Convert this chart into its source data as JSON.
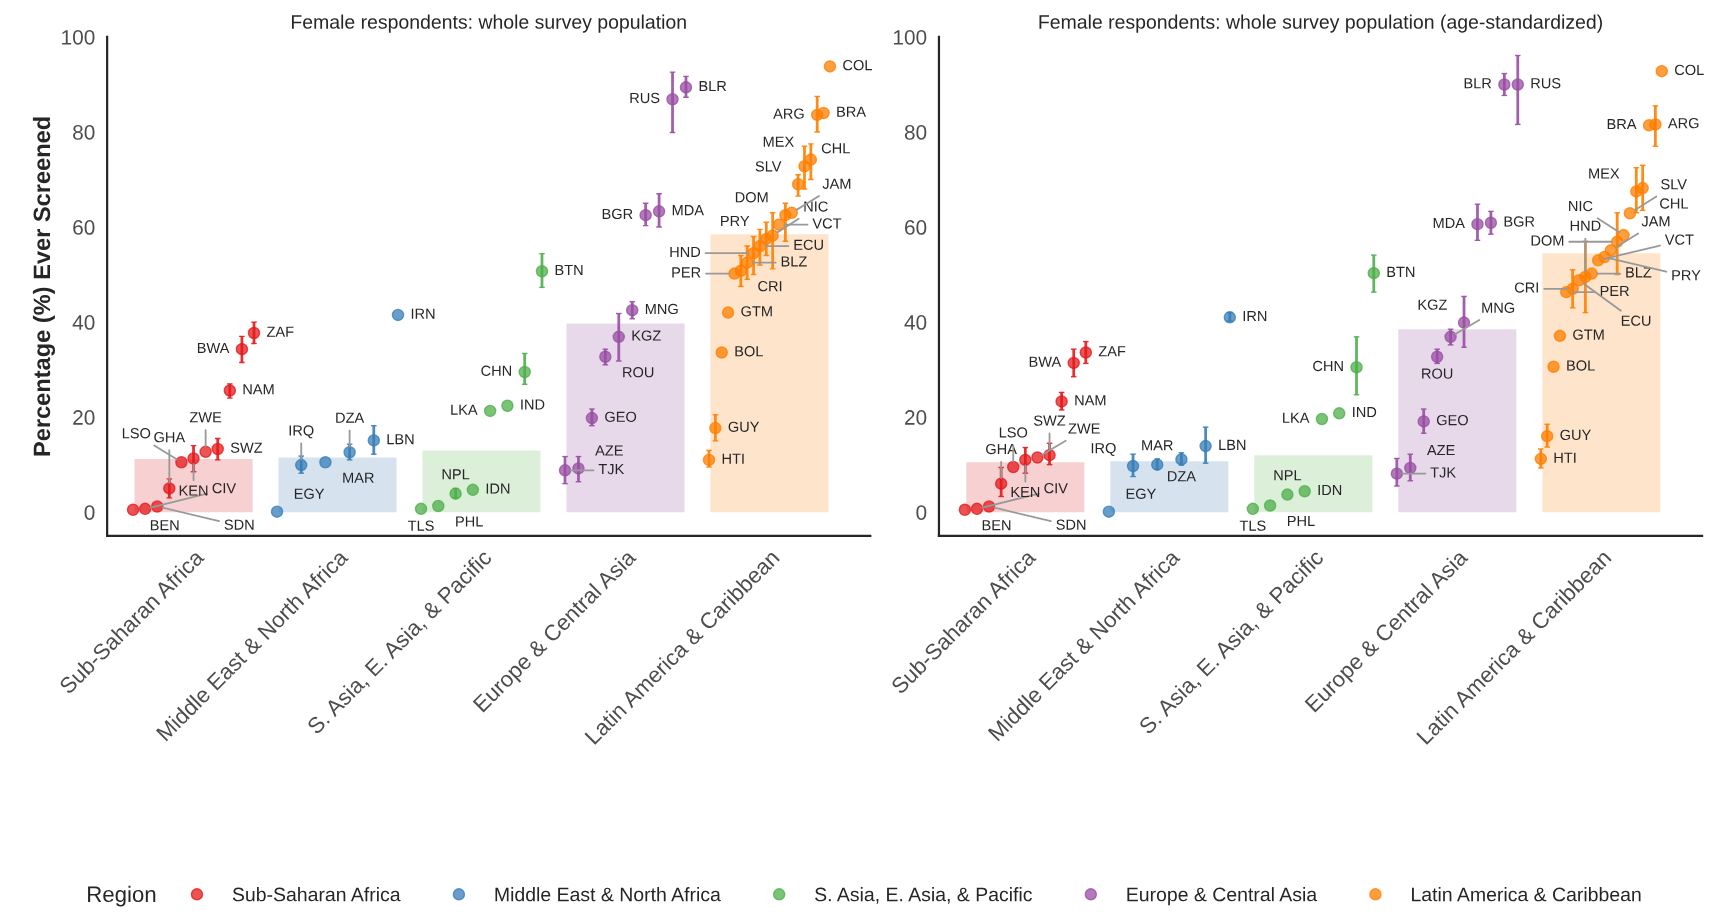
{
  "chart_data": [
    {
      "type": "bar",
      "title": "Female respondents: whole survey population",
      "ylabel": "Percentage (%) Ever Screened",
      "categories": [
        "Sub-Saharan Africa",
        "Middle East & North Africa",
        "S. Asia, E. Asia, & Pacific",
        "Europe & Central Asia",
        "Latin America & Caribbean"
      ],
      "ylim": [
        -5,
        100
      ],
      "yticks": [
        0,
        20,
        40,
        60,
        80,
        100
      ],
      "legend": "bottom",
      "legend_title": "Region",
      "series": [
        {
          "colors": [
            "#f7d0d1",
            "#d6e3ef",
            "#dcefd9",
            "#e7d9ea",
            "#ffe4cc"
          ],
          "values": [
            11.2,
            11.5,
            13,
            39.7,
            58.5
          ]
        },
        {
          "type": "scatter",
          "name": "Sub-Saharan Africa",
          "color": "#e41a1c",
          "x": [
            "Sub-Saharan Africa",
            "Sub-Saharan Africa",
            "Sub-Saharan Africa",
            "Sub-Saharan Africa",
            "Sub-Saharan Africa",
            "Sub-Saharan Africa",
            "Sub-Saharan Africa",
            "Sub-Saharan Africa",
            "Sub-Saharan Africa",
            "Sub-Saharan Africa",
            "Sub-Saharan Africa"
          ],
          "values": [
            0.5,
            0.7,
            1.2,
            5,
            10.5,
            11.3,
            12.7,
            13.3,
            25.6,
            34.3,
            37.7
          ],
          "errors": [
            null,
            null,
            null,
            [
              3,
              7
            ],
            null,
            [
              8.5,
              14
            ],
            null,
            [
              11,
              15.5
            ],
            [
              24,
              27
            ],
            [
              31.5,
              37
            ],
            [
              35.5,
              40
            ]
          ],
          "value_labels": [
            "BEN",
            "CIV",
            "SDN",
            "GHA",
            "LSO",
            "KEN",
            "ZWE",
            "SWZ",
            "NAM",
            "BWA",
            "ZAF"
          ]
        },
        {
          "type": "scatter",
          "name": "Middle East & North Africa",
          "color": "#377eb8",
          "x": [
            "Middle East & North Africa",
            "Middle East & North Africa",
            "Middle East & North Africa",
            "Middle East & North Africa",
            "Middle East & North Africa",
            "Middle East & North Africa"
          ],
          "values": [
            0.1,
            9.9,
            10.5,
            12.6,
            15.1,
            41.5
          ],
          "errors": [
            null,
            [
              8.2,
              11.8
            ],
            null,
            [
              11,
              14.3
            ],
            [
              12.2,
              18.2
            ],
            null
          ],
          "value_labels": [
            "EGY",
            "IRQ",
            "MAR",
            "DZA",
            "LBN",
            "IRN"
          ]
        },
        {
          "type": "scatter",
          "name": "S. Asia, E. Asia, & Pacific",
          "color": "#4daf4a",
          "x": [
            "S. Asia, E. Asia, & Pacific",
            "S. Asia, E. Asia, & Pacific",
            "S. Asia, E. Asia, & Pacific",
            "S. Asia, E. Asia, & Pacific",
            "S. Asia, E. Asia, & Pacific",
            "S. Asia, E. Asia, & Pacific",
            "S. Asia, E. Asia, & Pacific",
            "S. Asia, E. Asia, & Pacific"
          ],
          "values": [
            0.7,
            1.3,
            3.9,
            4.7,
            21.3,
            22.4,
            29.5,
            50.7
          ],
          "errors": [
            null,
            null,
            [
              3,
              5
            ],
            null,
            null,
            null,
            [
              26.9,
              33.4
            ],
            [
              47.3,
              54.4
            ]
          ],
          "value_labels": [
            "TLS",
            "PHL",
            "NPL",
            "IDN",
            "LKA",
            "IND",
            "CHN",
            "BTN"
          ]
        },
        {
          "type": "scatter",
          "name": "Europe & Central Asia",
          "color": "#984ea3",
          "x": [
            "Europe & Central Asia",
            "Europe & Central Asia",
            "Europe & Central Asia",
            "Europe & Central Asia",
            "Europe & Central Asia",
            "Europe & Central Asia",
            "Europe & Central Asia",
            "Europe & Central Asia",
            "Europe & Central Asia",
            "Europe & Central Asia"
          ],
          "values": [
            8.8,
            9.2,
            19.8,
            32.7,
            36.9,
            42.5,
            62.5,
            63.3,
            86.9,
            89.4
          ],
          "errors": [
            [
              6,
              11.7
            ],
            [
              6.4,
              11.7
            ],
            [
              18.2,
              21.7
            ],
            [
              31,
              34.3
            ],
            [
              31.8,
              41.8
            ],
            [
              40.7,
              44.3
            ],
            [
              60.3,
              65
            ],
            [
              60,
              67
            ],
            [
              79.9,
              92.6
            ],
            [
              87.3,
              91.7
            ]
          ],
          "value_labels": [
            "TJK",
            "AZE",
            "GEO",
            "ROU",
            "KGZ",
            "MNG",
            "BGR",
            "MDA",
            "RUS",
            "BLR"
          ]
        },
        {
          "type": "scatter",
          "name": "Latin America & Caribbean",
          "color": "#ff7f00",
          "x": [
            "Latin America & Caribbean",
            "Latin America & Caribbean",
            "Latin America & Caribbean",
            "Latin America & Caribbean",
            "Latin America & Caribbean",
            "Latin America & Caribbean",
            "Latin America & Caribbean",
            "Latin America & Caribbean",
            "Latin America & Caribbean",
            "Latin America & Caribbean",
            "Latin America & Caribbean",
            "Latin America & Caribbean",
            "Latin America & Caribbean",
            "Latin America & Caribbean",
            "Latin America & Caribbean",
            "Latin America & Caribbean",
            "Latin America & Caribbean",
            "Latin America & Caribbean",
            "Latin America & Caribbean",
            "Latin America & Caribbean"
          ],
          "values": [
            11,
            17.7,
            33.6,
            42,
            50.2,
            50.8,
            52.5,
            54.5,
            56,
            57.5,
            58.2,
            60.5,
            62.5,
            63,
            69,
            72.8,
            74.2,
            83.6,
            84,
            93.8
          ],
          "errors": [
            [
              9.5,
              13
            ],
            [
              15,
              20.5
            ],
            null,
            null,
            null,
            [
              47.5,
              54
            ],
            [
              49,
              56
            ],
            [
              50,
              58
            ],
            [
              52,
              59.5
            ],
            [
              54,
              61
            ],
            [
              51.2,
              63
            ],
            null,
            [
              57,
              65
            ],
            null,
            [
              66.5,
              71
            ],
            [
              68,
              77
            ],
            [
              70,
              77.5
            ],
            [
              80,
              87.5
            ],
            null,
            null
          ],
          "value_labels": [
            "HTI",
            "GUY",
            "BOL",
            "GTM",
            "PER",
            "CRI",
            "BLZ",
            "HND",
            "ECU",
            "PRY",
            "NIC",
            "VCT",
            "DOM",
            "JAM",
            "SLV",
            "CHL",
            "MEX",
            "ARG",
            "BRA",
            "COL"
          ]
        }
      ]
    },
    {
      "type": "bar",
      "title": "Female respondents: whole survey population (age-standardized)",
      "categories": [
        "Sub-Saharan Africa",
        "Middle East & North Africa",
        "S. Asia, E. Asia, & Pacific",
        "Europe & Central Asia",
        "Latin America & Caribbean"
      ],
      "ylim": [
        -5,
        100
      ],
      "yticks": [
        0,
        20,
        40,
        60,
        80,
        100
      ],
      "series": [
        {
          "colors": [
            "#f7d0d1",
            "#d6e3ef",
            "#dcefd9",
            "#e7d9ea",
            "#ffe4cc"
          ],
          "values": [
            10.5,
            10.7,
            12,
            38.5,
            54.5
          ]
        },
        {
          "type": "scatter",
          "name": "Sub-Saharan Africa",
          "color": "#e41a1c",
          "x": [
            "Sub-Saharan Africa",
            "Sub-Saharan Africa",
            "Sub-Saharan Africa",
            "Sub-Saharan Africa",
            "Sub-Saharan Africa",
            "Sub-Saharan Africa",
            "Sub-Saharan Africa",
            "Sub-Saharan Africa",
            "Sub-Saharan Africa",
            "Sub-Saharan Africa",
            "Sub-Saharan Africa"
          ],
          "values": [
            0.5,
            0.7,
            1.2,
            6,
            9.5,
            11,
            11.5,
            12,
            23.3,
            31.4,
            33.6
          ],
          "errors": [
            null,
            null,
            null,
            [
              3.3,
              9.4
            ],
            null,
            [
              8.2,
              13.6
            ],
            null,
            [
              10,
              14.5
            ],
            [
              21.5,
              25.2
            ],
            [
              28.5,
              34.3
            ],
            [
              31.3,
              35.9
            ]
          ],
          "value_labels": [
            "BEN",
            "CIV",
            "SDN",
            "GHA",
            "LSO",
            "KEN",
            "ZWE",
            "SWZ",
            "NAM",
            "BWA",
            "ZAF"
          ]
        },
        {
          "type": "scatter",
          "name": "Middle East & North Africa",
          "color": "#377eb8",
          "x": [
            "Middle East & North Africa",
            "Middle East & North Africa",
            "Middle East & North Africa",
            "Middle East & North Africa",
            "Middle East & North Africa",
            "Middle East & North Africa"
          ],
          "values": [
            0.1,
            9.7,
            10,
            11.1,
            13.9,
            41
          ],
          "errors": [
            null,
            [
              7.5,
              12.2
            ],
            [
              9,
              11.2
            ],
            [
              9.9,
              12.5
            ],
            [
              10.3,
              17.9
            ],
            [
              40.2,
              42
            ]
          ],
          "value_labels": [
            "EGY",
            "IRQ",
            "MAR",
            "DZA",
            "LBN",
            "IRN"
          ]
        },
        {
          "type": "scatter",
          "name": "S. Asia, E. Asia, & Pacific",
          "color": "#4daf4a",
          "x": [
            "S. Asia, E. Asia, & Pacific",
            "S. Asia, E. Asia, & Pacific",
            "S. Asia, E. Asia, & Pacific",
            "S. Asia, E. Asia, & Pacific",
            "S. Asia, E. Asia, & Pacific",
            "S. Asia, E. Asia, & Pacific",
            "S. Asia, E. Asia, & Pacific",
            "S. Asia, E. Asia, & Pacific"
          ],
          "values": [
            0.7,
            1.4,
            3.7,
            4.4,
            19.6,
            20.8,
            30.5,
            50.3
          ],
          "errors": [
            null,
            null,
            null,
            null,
            null,
            null,
            [
              24.7,
              36.9
            ],
            [
              46.3,
              54.1
            ]
          ],
          "value_labels": [
            "TLS",
            "PHL",
            "NPL",
            "IDN",
            "LKA",
            "IND",
            "CHN",
            "BTN"
          ]
        },
        {
          "type": "scatter",
          "name": "Europe & Central Asia",
          "color": "#984ea3",
          "x": [
            "Europe & Central Asia",
            "Europe & Central Asia",
            "Europe & Central Asia",
            "Europe & Central Asia",
            "Europe & Central Asia",
            "Europe & Central Asia",
            "Europe & Central Asia",
            "Europe & Central Asia",
            "Europe & Central Asia",
            "Europe & Central Asia"
          ],
          "values": [
            8.1,
            9.3,
            19.1,
            32.7,
            36.9,
            39.9,
            60.6,
            60.9,
            90,
            90
          ],
          "errors": [
            [
              5.5,
              11.3
            ],
            [
              6.6,
              12.2
            ],
            [
              16.6,
              21.7
            ],
            [
              31.3,
              34.3
            ],
            [
              35.2,
              38.5
            ],
            [
              34.7,
              45.4
            ],
            [
              57.2,
              64.8
            ],
            [
              58.5,
              63.3
            ],
            [
              87.7,
              92.3
            ],
            [
              81.6,
              96.1
            ]
          ],
          "value_labels": [
            "TJK",
            "AZE",
            "GEO",
            "ROU",
            "MNG",
            "KGZ",
            "MDA",
            "BGR",
            "BLR",
            "RUS"
          ]
        },
        {
          "type": "scatter",
          "name": "Latin America & Caribbean",
          "color": "#ff7f00",
          "x": [
            "Latin America & Caribbean",
            "Latin America & Caribbean",
            "Latin America & Caribbean",
            "Latin America & Caribbean",
            "Latin America & Caribbean",
            "Latin America & Caribbean",
            "Latin America & Caribbean",
            "Latin America & Caribbean",
            "Latin America & Caribbean",
            "Latin America & Caribbean",
            "Latin America & Caribbean",
            "Latin America & Caribbean",
            "Latin America & Caribbean",
            "Latin America & Caribbean",
            "Latin America & Caribbean",
            "Latin America & Caribbean",
            "Latin America & Caribbean",
            "Latin America & Caribbean",
            "Latin America & Caribbean",
            "Latin America & Caribbean"
          ],
          "values": [
            11.2,
            16,
            30.6,
            37.1,
            46.3,
            47,
            48.8,
            49.5,
            50.2,
            53,
            53.7,
            55.1,
            56.9,
            58.3,
            62.9,
            67.5,
            68.2,
            81.4,
            81.6,
            92.8
          ],
          "errors": [
            [
              9.3,
              13.3
            ],
            [
              13.7,
              18.5
            ],
            null,
            null,
            null,
            [
              43,
              51
            ],
            null,
            [
              42,
              57
            ],
            null,
            null,
            null,
            null,
            [
              50,
              63
            ],
            null,
            null,
            [
              63,
              72.5
            ],
            [
              63.5,
              73
            ],
            null,
            [
              77,
              85.5
            ],
            null
          ],
          "value_labels": [
            "HTI",
            "GUY",
            "BOL",
            "GTM",
            "PER",
            "CRI",
            "ECU",
            "HND",
            "BLZ",
            "VCT",
            "PRY",
            "JAM",
            "DOM",
            "NIC",
            "SLV",
            "MEX",
            "CHL",
            "BRA",
            "ARG",
            "COL"
          ]
        }
      ]
    }
  ]
}
